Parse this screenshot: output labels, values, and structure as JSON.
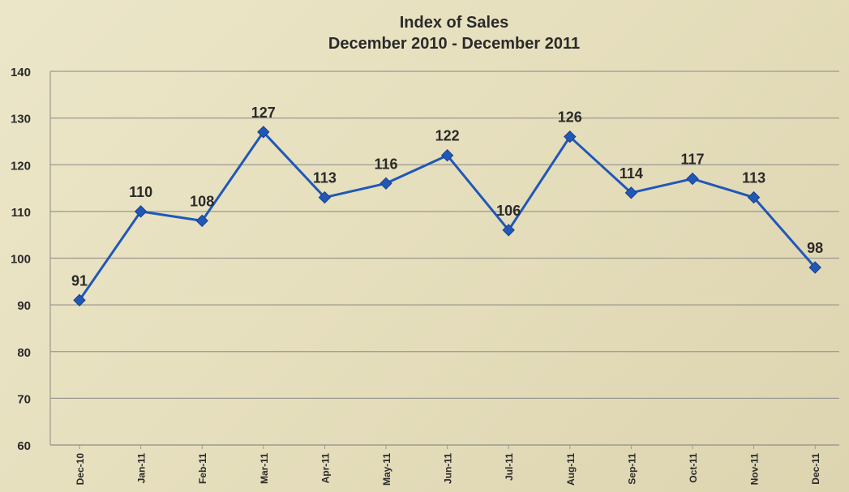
{
  "chart_data": {
    "type": "line",
    "title": [
      "Index of Sales",
      "December 2010 - December 2011"
    ],
    "categories": [
      "Dec-10",
      "Jan-11",
      "Feb-11",
      "Mar-11",
      "Apr-11",
      "May-11",
      "Jun-11",
      "Jul-11",
      "Aug-11",
      "Sep-11",
      "Oct-11",
      "Nov-11",
      "Dec-11"
    ],
    "values": [
      91,
      110,
      108,
      127,
      113,
      116,
      122,
      106,
      126,
      114,
      117,
      113,
      98
    ],
    "data_labels": [
      "91",
      "110",
      "108",
      "127",
      "113",
      "116",
      "122",
      "106",
      "126",
      "114",
      "117",
      "113",
      "98"
    ],
    "ylim": [
      60,
      140
    ],
    "yticks": [
      60,
      70,
      80,
      90,
      100,
      110,
      120,
      130,
      140
    ],
    "grid": true,
    "legend": "none",
    "xlabel": "",
    "ylabel": "",
    "colors": {
      "line": "#2058b8",
      "marker": "#2058b8",
      "grid": "#9a9890",
      "text": "#2a2a2a"
    }
  }
}
